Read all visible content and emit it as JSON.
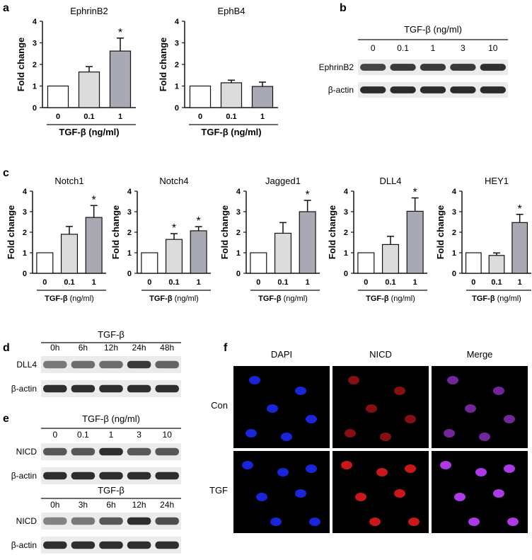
{
  "colors": {
    "bar_ctrl": "#ffffff",
    "bar_low": "#dcdcdc",
    "bar_high": "#a9a9b4",
    "dapi": "#1f2cff",
    "nicd": "#e0191e",
    "merge": "#c040ff"
  },
  "letters": {
    "a": "a",
    "b": "b",
    "c": "c",
    "d": "d",
    "e": "e",
    "f": "f"
  },
  "y_axis_label": "Fold change",
  "chart_data": [
    {
      "type": "bar",
      "title": "EphrinB2",
      "categories": [
        "0",
        "0.1",
        "1"
      ],
      "values": [
        1.0,
        1.65,
        2.62
      ],
      "errors": [
        0,
        0.25,
        0.6
      ],
      "significant": [
        false,
        false,
        true
      ],
      "ylim": [
        0,
        4
      ],
      "yticks": [
        "0",
        "1",
        "2",
        "3",
        "4"
      ],
      "ylabel": "Fold change",
      "xlabel": "TGF-β (ng/ml)"
    },
    {
      "type": "bar",
      "title": "EphB4",
      "categories": [
        "0",
        "0.1",
        "1"
      ],
      "values": [
        1.0,
        1.15,
        0.98
      ],
      "errors": [
        0,
        0.12,
        0.2
      ],
      "significant": [
        false,
        false,
        false
      ],
      "ylim": [
        0,
        4
      ],
      "yticks": [
        "0",
        "1",
        "2",
        "3",
        "4"
      ],
      "ylabel": "",
      "xlabel": "TGF-β (ng/ml)"
    },
    {
      "type": "bar",
      "title": "Notch1",
      "categories": [
        "0",
        "0.1",
        "1"
      ],
      "values": [
        1.0,
        1.9,
        2.72
      ],
      "errors": [
        0,
        0.38,
        0.58
      ],
      "significant": [
        false,
        false,
        true
      ],
      "ylim": [
        0,
        4
      ],
      "yticks": [
        "0",
        "1",
        "2",
        "3",
        "4"
      ],
      "ylabel": "Fold change",
      "xlabel": "TGF-β (ng/ml)"
    },
    {
      "type": "bar",
      "title": "Notch4",
      "categories": [
        "0",
        "0.1",
        "1"
      ],
      "values": [
        1.0,
        1.65,
        2.07
      ],
      "errors": [
        0,
        0.28,
        0.2
      ],
      "significant": [
        false,
        true,
        true
      ],
      "ylim": [
        0,
        4
      ],
      "yticks": [
        "0",
        "1",
        "2",
        "3",
        "4"
      ],
      "ylabel": "Fold change",
      "xlabel": "TGF-β (ng/ml)"
    },
    {
      "type": "bar",
      "title": "Jagged1",
      "categories": [
        "0",
        "0.1",
        "1"
      ],
      "values": [
        1.0,
        1.95,
        3.0
      ],
      "errors": [
        0,
        0.52,
        0.55
      ],
      "significant": [
        false,
        false,
        true
      ],
      "ylim": [
        0,
        4
      ],
      "yticks": [
        "0",
        "1",
        "2",
        "3",
        "4"
      ],
      "ylabel": "Fold change",
      "xlabel": "TGF-β (ng/ml)"
    },
    {
      "type": "bar",
      "title": "DLL4",
      "categories": [
        "0",
        "0.1",
        "1"
      ],
      "values": [
        1.0,
        1.4,
        3.02
      ],
      "errors": [
        0,
        0.4,
        0.65
      ],
      "significant": [
        false,
        false,
        true
      ],
      "ylim": [
        0,
        4
      ],
      "yticks": [
        "0",
        "1",
        "2",
        "3",
        "4"
      ],
      "ylabel": "Fold change",
      "xlabel": "TGF-β (ng/ml)"
    },
    {
      "type": "bar",
      "title": "HEY1",
      "categories": [
        "0",
        "0.1",
        "1"
      ],
      "values": [
        1.0,
        0.87,
        2.47
      ],
      "errors": [
        0,
        0.12,
        0.4
      ],
      "significant": [
        false,
        false,
        true
      ],
      "ylim": [
        0,
        4
      ],
      "yticks": [
        "0",
        "1",
        "2",
        "3",
        "4"
      ],
      "ylabel": "Fold change",
      "xlabel": "TGF-β (ng/ml)"
    }
  ],
  "xlabel_a": {
    "treat": "TGF-β",
    "unit": "(ng/ml)"
  },
  "xlabel_c": {
    "treat": "TGF-β",
    "unit": "(ng/ml)"
  },
  "blot_b": {
    "header": "TGF-β (ng/ml)",
    "lanes": [
      "0",
      "0.1",
      "1",
      "3",
      "10"
    ],
    "rows": [
      "EphrinB2",
      "β-actin"
    ]
  },
  "blot_d": {
    "header": "TGF-β",
    "lanes": [
      "0h",
      "6h",
      "12h",
      "24h",
      "48h"
    ],
    "rows": [
      "DLL4",
      "β-actin"
    ]
  },
  "blot_e1": {
    "header": "TGF-β (ng/ml)",
    "lanes": [
      "0",
      "0.1",
      "1",
      "3",
      "10"
    ],
    "rows": [
      "NICD",
      "β-actin"
    ]
  },
  "blot_e2": {
    "header": "TGF-β",
    "lanes": [
      "0h",
      "3h",
      "6h",
      "12h",
      "24h"
    ],
    "rows": [
      "NICD",
      "β-actin"
    ]
  },
  "micro_f": {
    "columns": [
      "DAPI",
      "NICD",
      "Merge"
    ],
    "rows": [
      "Con",
      "TGF"
    ]
  }
}
